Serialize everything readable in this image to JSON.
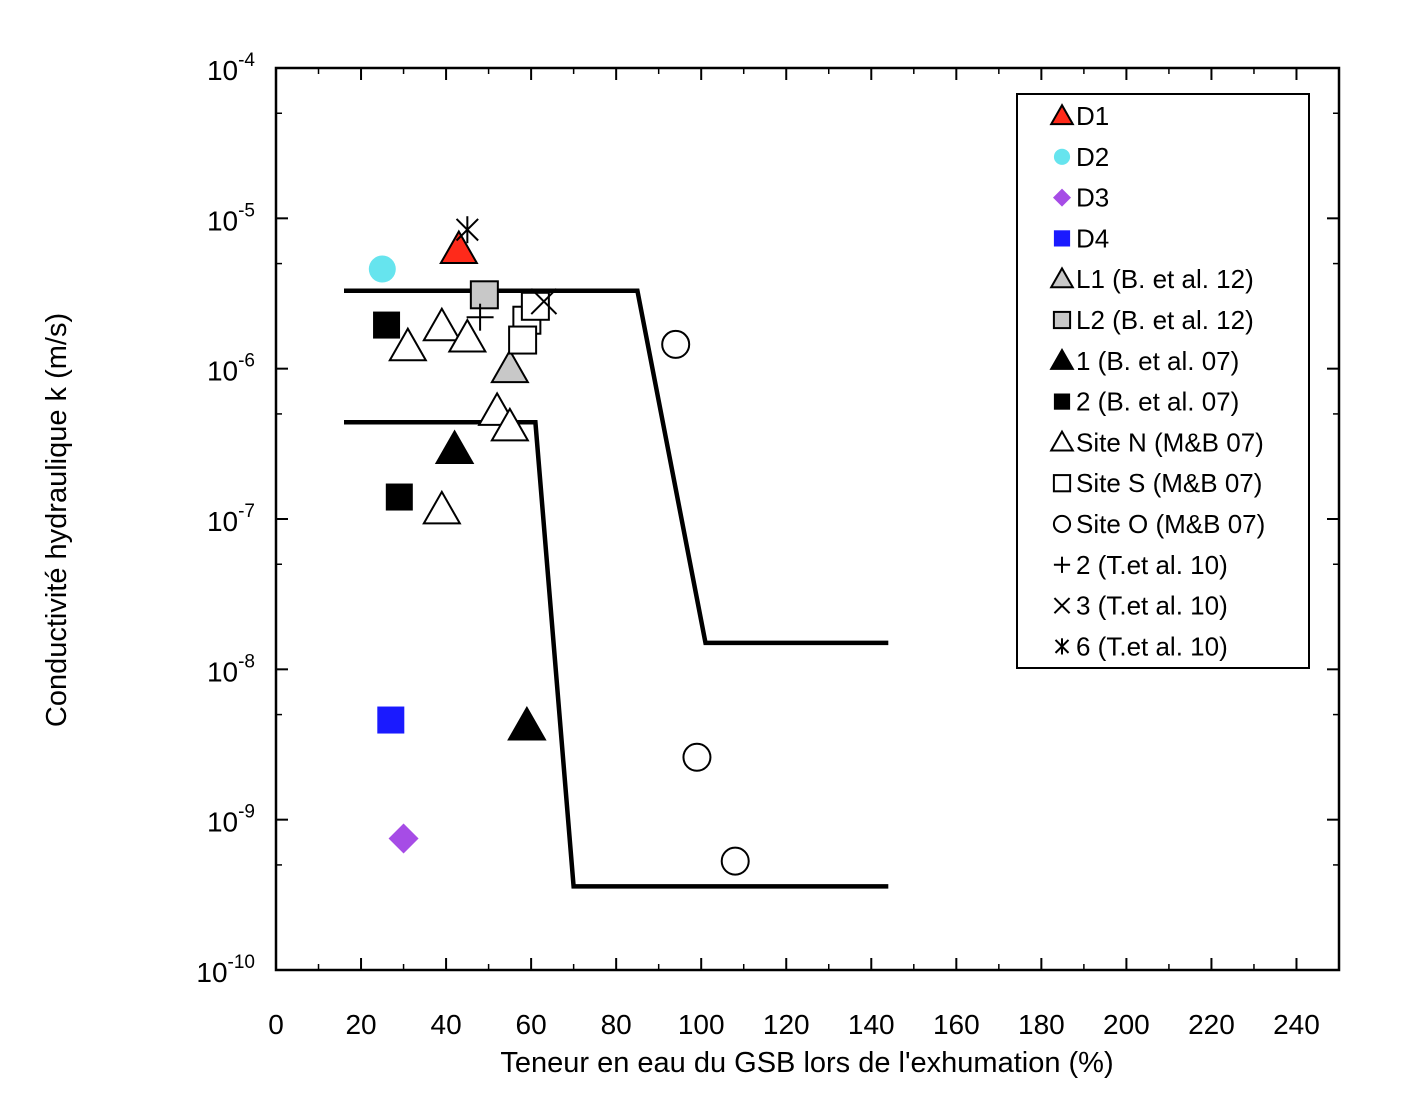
{
  "chart_data": {
    "type": "scatter",
    "title": "",
    "xlabel": "Teneur en eau du GSB lors de l'exhumation (%)",
    "ylabel": "Conductivité hydraulique k (m/s)",
    "xlim": [
      0,
      250
    ],
    "ylim": [
      1e-10,
      0.0001
    ],
    "yscale": "log",
    "x_ticks": [
      "0",
      "20",
      "40",
      "60",
      "80",
      "100",
      "120",
      "140",
      "160",
      "180",
      "200",
      "220",
      "240"
    ],
    "y_ticks": [
      {
        "base": "10",
        "exp": "-4",
        "value": 0.0001
      },
      {
        "base": "10",
        "exp": "-5",
        "value": 1e-05
      },
      {
        "base": "10",
        "exp": "-6",
        "value": 1e-06
      },
      {
        "base": "10",
        "exp": "-7",
        "value": 1e-07
      },
      {
        "base": "10",
        "exp": "-8",
        "value": 1e-08
      },
      {
        "base": "10",
        "exp": "-9",
        "value": 1e-09
      },
      {
        "base": "10",
        "exp": "-10",
        "value": 1e-10
      }
    ],
    "grid": false,
    "legend_position": "top-right",
    "series": [
      {
        "name": "D1",
        "marker": "triangle",
        "fill": "#ff2a1a",
        "points": [
          [
            43,
            6.2e-06
          ]
        ]
      },
      {
        "name": "D2",
        "marker": "circle",
        "fill": "#66e4ee",
        "points": [
          [
            25,
            4.6e-06
          ]
        ]
      },
      {
        "name": "D3",
        "marker": "diamond",
        "fill": "#a64ce6",
        "points": [
          [
            30,
            7.5e-10
          ]
        ]
      },
      {
        "name": "D4",
        "marker": "square",
        "fill": "#1a1aff",
        "points": [
          [
            27,
            4.6e-09
          ]
        ]
      },
      {
        "name": "L1 (B. et al. 12)",
        "marker": "triangle",
        "fill": "#c8c8c8",
        "points": [
          [
            55,
            1e-06
          ]
        ]
      },
      {
        "name": "L2 (B. et al. 12)",
        "marker": "square",
        "fill": "#c8c8c8",
        "points": [
          [
            49,
            3.1e-06
          ]
        ]
      },
      {
        "name": "1 (B. et al. 07)",
        "marker": "triangle",
        "fill": "#000000",
        "points": [
          [
            42,
            2.9e-07
          ],
          [
            59,
            4.2e-09
          ]
        ]
      },
      {
        "name": "2 (B. et al. 07)",
        "marker": "square",
        "fill": "#000000",
        "points": [
          [
            26,
            1.95e-06
          ],
          [
            29,
            1.4e-07
          ]
        ]
      },
      {
        "name": "Site N (M&B 07)",
        "marker": "triangle",
        "fill": "none",
        "points": [
          [
            31,
            1.4e-06
          ],
          [
            39,
            1.9e-06
          ],
          [
            45,
            1.6e-06
          ],
          [
            52,
            5.2e-07
          ],
          [
            55,
            4.1e-07
          ],
          [
            39,
            1.15e-07
          ]
        ]
      },
      {
        "name": "Site S (M&B 07)",
        "marker": "square",
        "fill": "none",
        "points": [
          [
            59,
            2.1e-06
          ],
          [
            58,
            1.55e-06
          ],
          [
            61,
            2.6e-06
          ]
        ]
      },
      {
        "name": "Site O (M&B 07)",
        "marker": "circle",
        "fill": "none",
        "points": [
          [
            94,
            1.45e-06
          ],
          [
            99,
            2.6e-09
          ],
          [
            108,
            5.3e-10
          ]
        ]
      },
      {
        "name": "2 (T.et al. 10)",
        "marker": "plus",
        "fill": "none",
        "points": [
          [
            48,
            2.2e-06
          ]
        ]
      },
      {
        "name": "3 (T.et al. 10)",
        "marker": "cross",
        "fill": "none",
        "points": [
          [
            63,
            2.8e-06
          ]
        ]
      },
      {
        "name": "6 (T.et al. 10)",
        "marker": "asterisk",
        "fill": "none",
        "points": [
          [
            45,
            8.4e-06
          ]
        ]
      }
    ],
    "lines": [
      {
        "points": [
          [
            16,
            3.3e-06
          ],
          [
            85,
            3.3e-06
          ],
          [
            101,
            1.5e-08
          ],
          [
            144,
            1.5e-08
          ]
        ]
      },
      {
        "points": [
          [
            16,
            4.4e-07
          ],
          [
            61,
            4.4e-07
          ],
          [
            70,
            3.6e-10
          ],
          [
            144,
            3.6e-10
          ]
        ]
      }
    ]
  },
  "colors": {
    "axis": "#000000",
    "line": "#000000"
  }
}
